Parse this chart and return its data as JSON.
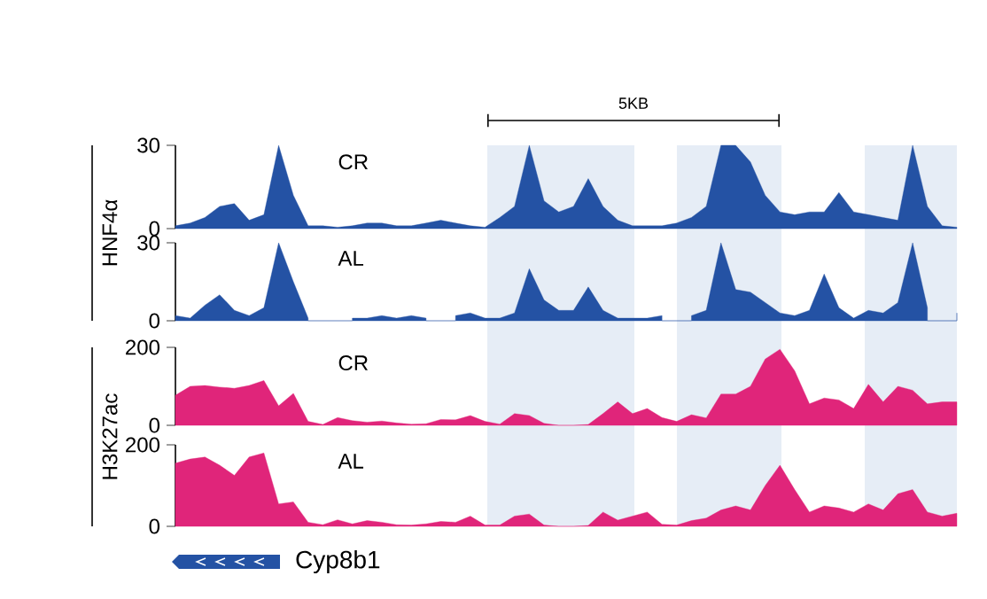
{
  "chart_data": [
    {
      "type": "area",
      "ylabel": "HNF4α",
      "annotations": [
        "CR",
        "5KB"
      ],
      "color": "#2452a4",
      "ylim": [
        0,
        30
      ],
      "yticks": [
        0,
        30
      ],
      "tick_labels": "y",
      "categories": [
        null,
        null,
        null,
        null,
        null,
        null,
        null,
        null,
        null,
        null,
        null,
        null,
        null,
        null,
        null,
        null,
        null,
        null,
        null,
        null,
        null,
        null,
        null,
        null,
        null,
        null,
        null,
        null,
        null,
        null,
        null,
        null,
        null,
        null,
        null,
        null,
        null,
        null,
        null,
        null,
        null,
        null,
        null,
        null,
        null,
        null,
        null,
        null,
        null,
        null,
        null,
        null,
        null,
        null
      ],
      "values": [
        1,
        2,
        4,
        8,
        9,
        3,
        5,
        30,
        12,
        1,
        1,
        0.5,
        1,
        2,
        2,
        1,
        1,
        2,
        3,
        2,
        1,
        0.5,
        4,
        8,
        30,
        10,
        6,
        8,
        18,
        8,
        3,
        1,
        1,
        1,
        2,
        4,
        8,
        30,
        30,
        24,
        12,
        6,
        5,
        6,
        6,
        13,
        6,
        5,
        4,
        3,
        30,
        8,
        1,
        0.5
      ]
    },
    {
      "type": "area",
      "annotations": [
        "AL"
      ],
      "color": "#2452a4",
      "ylim": [
        0,
        30
      ],
      "yticks": [
        0,
        30
      ],
      "tick_labels": "y",
      "categories": [
        null,
        null,
        null,
        null,
        null,
        null,
        null,
        null,
        null,
        null,
        null,
        null,
        null,
        null,
        null,
        null,
        null,
        null,
        null,
        null,
        null,
        null,
        null,
        null,
        null,
        null,
        null,
        null,
        null,
        null,
        null,
        null,
        null,
        null,
        null,
        null,
        null,
        null,
        null,
        null,
        null,
        null,
        null,
        null,
        null,
        null,
        null,
        null,
        null,
        null,
        null,
        null,
        null,
        null
      ],
      "values": [
        2,
        1,
        6,
        10,
        4,
        2,
        5,
        30,
        15,
        1,
        null,
        null,
        1,
        1,
        2,
        1,
        2,
        1,
        null,
        2,
        3,
        1,
        1,
        3,
        20,
        8,
        4,
        4,
        13,
        4,
        1,
        1,
        1,
        2,
        null,
        2,
        4,
        30,
        12,
        11,
        7,
        3,
        2,
        4,
        18,
        5,
        1,
        4,
        3,
        7,
        30,
        5,
        null,
        3
      ]
    },
    {
      "type": "area",
      "ylabel": "H3K27ac",
      "annotations": [
        "CR"
      ],
      "color": "#e0257a",
      "ylim": [
        0,
        200
      ],
      "yticks": [
        0,
        200
      ],
      "tick_labels": "y",
      "categories": [
        null,
        null,
        null,
        null,
        null,
        null,
        null,
        null,
        null,
        null,
        null,
        null,
        null,
        null,
        null,
        null,
        null,
        null,
        null,
        null,
        null,
        null,
        null,
        null,
        null,
        null,
        null,
        null,
        null,
        null,
        null,
        null,
        null,
        null,
        null,
        null,
        null,
        null,
        null,
        null,
        null,
        null,
        null,
        null,
        null,
        null,
        null,
        null,
        null,
        null,
        null,
        null,
        null,
        null
      ],
      "values": [
        77,
        100,
        102,
        98,
        95,
        102,
        115,
        50,
        82,
        10,
        2,
        20,
        12,
        8,
        11,
        6,
        3,
        4,
        15,
        14,
        25,
        10,
        3,
        30,
        25,
        5,
        0,
        0,
        2,
        30,
        60,
        30,
        43,
        20,
        10,
        27,
        19,
        80,
        80,
        100,
        170,
        195,
        140,
        55,
        70,
        65,
        43,
        105,
        60,
        100,
        90,
        55,
        60,
        60
      ]
    },
    {
      "type": "area",
      "annotations": [
        "AL",
        "Cyp8b1"
      ],
      "color": "#e0257a",
      "ylim": [
        0,
        200
      ],
      "yticks": [
        0,
        200
      ],
      "tick_labels": "y",
      "categories": [
        null,
        null,
        null,
        null,
        null,
        null,
        null,
        null,
        null,
        null,
        null,
        null,
        null,
        null,
        null,
        null,
        null,
        null,
        null,
        null,
        null,
        null,
        null,
        null,
        null,
        null,
        null,
        null,
        null,
        null,
        null,
        null,
        null,
        null,
        null,
        null,
        null,
        null,
        null,
        null,
        null,
        null,
        null,
        null,
        null,
        null,
        null,
        null,
        null,
        null,
        null,
        null,
        null,
        null
      ],
      "values": [
        155,
        165,
        170,
        150,
        125,
        170,
        180,
        55,
        60,
        10,
        4,
        16,
        6,
        14,
        10,
        4,
        3,
        6,
        12,
        10,
        25,
        3,
        3,
        25,
        30,
        3,
        0,
        0,
        2,
        35,
        15,
        25,
        35,
        5,
        3,
        14,
        20,
        40,
        50,
        40,
        100,
        150,
        90,
        35,
        50,
        45,
        35,
        55,
        40,
        80,
        90,
        35,
        25,
        32
      ]
    }
  ]
}
